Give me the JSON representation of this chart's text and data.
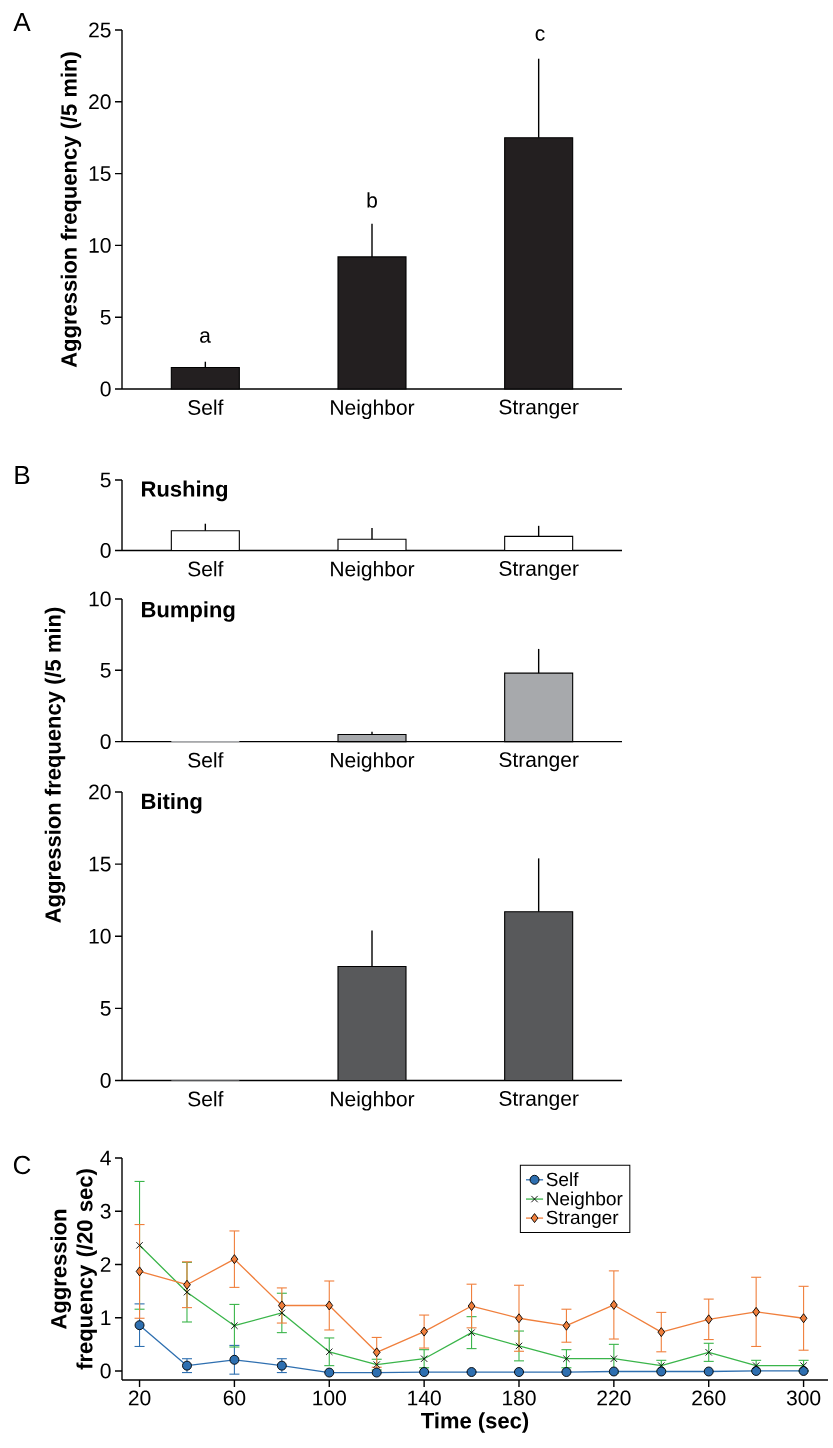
{
  "chart_data": [
    {
      "type": "bar",
      "ylabel": "Aggression frequency (/5 min)",
      "categories": [
        "Self",
        "Neighbor",
        "Stranger"
      ],
      "values": [
        1.5,
        9.2,
        17.5
      ],
      "errors": [
        [
          1.5,
          1.9
        ],
        [
          9.2,
          11.5
        ],
        [
          17.5,
          23.0
        ]
      ],
      "color": "#231f20",
      "ylim": [
        0,
        25
      ],
      "yticks": [
        0,
        5,
        10,
        15,
        20,
        25
      ],
      "annotations": [
        "A",
        "a",
        "b",
        "c"
      ]
    },
    {
      "type": "bar",
      "title": "Rushing",
      "categories": [
        "Self",
        "Neighbor",
        "Stranger"
      ],
      "values": [
        1.4,
        0.8,
        1.0
      ],
      "errors": [
        [
          1.4,
          1.9
        ],
        [
          0.8,
          1.6
        ],
        [
          1.0,
          1.75
        ]
      ],
      "color": "#ffffff",
      "ylim": [
        0,
        5
      ],
      "yticks": [
        0,
        5
      ],
      "annotations": [
        "B"
      ]
    },
    {
      "type": "bar",
      "title": "Bumping",
      "ylabel": "Aggression frequency (/5 min)",
      "categories": [
        "Self",
        "Neighbor",
        "Stranger"
      ],
      "values": [
        0,
        0.5,
        4.8
      ],
      "errors": [
        null,
        [
          0.5,
          0.7
        ],
        [
          4.8,
          6.5
        ]
      ],
      "color": "#a7a9ac",
      "ylim": [
        0,
        10
      ],
      "yticks": [
        0,
        5,
        10
      ]
    },
    {
      "type": "bar",
      "title": "Biting",
      "categories": [
        "Self",
        "Neighbor",
        "Stranger"
      ],
      "values": [
        0,
        7.9,
        11.7
      ],
      "errors": [
        null,
        [
          7.9,
          10.4
        ],
        [
          11.7,
          15.4
        ]
      ],
      "color": "#58595b",
      "ylim": [
        0,
        20
      ],
      "yticks": [
        0,
        5,
        10,
        15,
        20
      ]
    },
    {
      "type": "line",
      "xlabel": "Time (sec)",
      "ylabel": "Aggression frequency (/20 sec)",
      "x": [
        20,
        40,
        60,
        80,
        100,
        120,
        140,
        160,
        180,
        200,
        220,
        240,
        260,
        280,
        300
      ],
      "xlim": [
        12.6,
        310.3
      ],
      "xticks": [
        20,
        60,
        100,
        140,
        180,
        220,
        260,
        300
      ],
      "ylim": [
        -0.17,
        4
      ],
      "yticks": [
        0,
        1,
        2,
        3,
        4
      ],
      "legend": "top right",
      "annotations": [
        "C"
      ],
      "series": [
        {
          "name": "Self",
          "color": "#2e6fb0",
          "marker": "circle",
          "values": [
            0.86,
            0.1,
            0.21,
            0.1,
            -0.03,
            -0.03,
            -0.02,
            -0.02,
            -0.02,
            -0.02,
            -0.01,
            -0.01,
            -0.01,
            0,
            0
          ],
          "errors": [
            0.4,
            0.13,
            0.27,
            0.13,
            null,
            null,
            null,
            null,
            null,
            null,
            null,
            null,
            null,
            null,
            null
          ]
        },
        {
          "name": "Neighbor",
          "color": "#3ab54a",
          "marker": "cross",
          "values": [
            2.36,
            1.48,
            0.85,
            1.09,
            0.36,
            0.12,
            0.23,
            0.72,
            0.47,
            0.23,
            0.23,
            0.1,
            0.35,
            0.1,
            0.1
          ],
          "errors": [
            1.2,
            0.56,
            0.4,
            0.37,
            0.26,
            0.1,
            0.17,
            0.3,
            0.28,
            0.17,
            0.27,
            0.1,
            0.17,
            0.1,
            0.1
          ]
        },
        {
          "name": "Stranger",
          "color": "#f07f3c",
          "marker": "diamond",
          "values": [
            1.87,
            1.62,
            2.1,
            1.23,
            1.23,
            0.35,
            0.74,
            1.22,
            0.99,
            0.85,
            1.24,
            0.73,
            0.97,
            1.11,
            0.99
          ],
          "errors": [
            0.88,
            0.43,
            0.53,
            0.33,
            0.46,
            0.28,
            0.31,
            0.41,
            0.62,
            0.31,
            0.64,
            0.37,
            0.38,
            0.65,
            0.6
          ]
        }
      ]
    }
  ]
}
